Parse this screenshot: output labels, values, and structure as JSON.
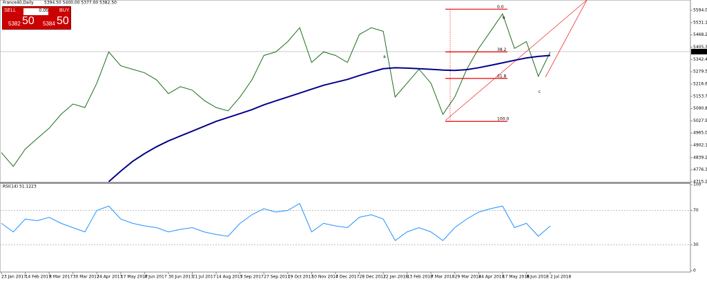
{
  "header": {
    "symbol": "France40,Daily",
    "ohlc": "5394.50 5400.00 5377.00 5382.50"
  },
  "trade_panel": {
    "sell": "SELL",
    "buy": "BUY",
    "lot": "0.05",
    "sell_price": "5382",
    "sell_pips": "50",
    "buy_price": "5384",
    "buy_pips": "50"
  },
  "chart_data": [
    {
      "type": "line",
      "categories": [
        "23 Jan 2017",
        null,
        "14 Feb 2017",
        null,
        "8 Mar 2017",
        null,
        "30 Mar 2017",
        null,
        "24 Apr 2017",
        null,
        "17 May 2017",
        null,
        "8 Jun 2017",
        null,
        "30 Jun 2017",
        null,
        "21 Jul 2017",
        null,
        "14 Aug 2017",
        null,
        "5 Sep 2017",
        null,
        "27 Sep 2017",
        null,
        "19 Oct 2017",
        null,
        "10 Nov 2017",
        null,
        "4 Dec 2017",
        null,
        "28 Dec 2017",
        null,
        "22 Jan 2018",
        null,
        "13 Feb 2018",
        null,
        "7 Mar 2018",
        null,
        "29 Mar 2018",
        null,
        "24 Apr 2018",
        null,
        "17 May 2018",
        null,
        "8 Jun 2018",
        null,
        "2 Jul 2018"
      ],
      "series": [
        {
          "color": "#1a6b1a",
          "values": [
            4865,
            4794,
            4883,
            4937,
            4990,
            5061,
            5114,
            5096,
            5221,
            5381,
            5310,
            5292,
            5274,
            5238,
            5167,
            5203,
            5185,
            5132,
            5096,
            5079,
            5150,
            5238,
            5363,
            5381,
            5434,
            5505,
            5327,
            5381,
            5363,
            5327,
            5470,
            5505,
            5487,
            5150,
            5221,
            5292,
            5221,
            5061,
            5150,
            5292,
            5399,
            5487,
            5576,
            5399,
            5434,
            5256,
            5381
          ]
        },
        {
          "color": "#00008b",
          "values": [
            null,
            null,
            null,
            null,
            null,
            null,
            null,
            null,
            null,
            4716,
            4770,
            4820,
            4860,
            4895,
            4925,
            4950,
            4975,
            5000,
            5025,
            5045,
            5065,
            5085,
            5110,
            5130,
            5150,
            5170,
            5190,
            5210,
            5225,
            5240,
            5260,
            5278,
            5295,
            5300,
            5298,
            5295,
            5292,
            5288,
            5286,
            5290,
            5300,
            5312,
            5325,
            5338,
            5350,
            5358,
            5363
          ]
        }
      ],
      "ylim": [
        4715.25,
        5647
      ],
      "yticks": [
        {
          "value": 5594,
          "label": "5594.00"
        },
        {
          "value": 5531.1,
          "label": "5531.10"
        },
        {
          "value": 5468.2,
          "label": "5468.20"
        },
        {
          "value": 5405.3,
          "label": "5405.30"
        },
        {
          "value": 5342.4,
          "label": "5342.40"
        },
        {
          "value": 5279.5,
          "label": "5279.50"
        },
        {
          "value": 5216.6,
          "label": "5216.60"
        },
        {
          "value": 5153.7,
          "label": "5153.70"
        },
        {
          "value": 5090.8,
          "label": "5090.80"
        },
        {
          "value": 5027.9,
          "label": "5027.90"
        },
        {
          "value": 4965,
          "label": "4965.00"
        },
        {
          "value": 4902.1,
          "label": "4902.10"
        },
        {
          "value": 4839.2,
          "label": "4839.20"
        },
        {
          "value": 4776.3,
          "label": "4776.30"
        },
        {
          "value": 4715.25,
          "label": "4715.25"
        }
      ],
      "current_price": {
        "value": 5382.5,
        "label": "5382.50"
      },
      "fib_levels": [
        {
          "value": 5600,
          "label": "0.0"
        },
        {
          "value": 5381,
          "label": "38.2"
        },
        {
          "value": 5245,
          "label": "61.8"
        },
        {
          "value": 5025,
          "label": "100.0"
        }
      ],
      "annotations": [
        {
          "text": "a",
          "x": 32,
          "y": 5355
        },
        {
          "text": "b",
          "x": 42,
          "y": 5555
        },
        {
          "text": "c",
          "x": 45,
          "y": 5175
        }
      ]
    },
    {
      "type": "line",
      "title": "RSI(14) 51.1223",
      "series": [
        {
          "color": "#1e90ff",
          "values": [
            55,
            45,
            60,
            58,
            62,
            55,
            50,
            45,
            70,
            75,
            60,
            55,
            52,
            50,
            45,
            48,
            50,
            45,
            42,
            40,
            55,
            65,
            72,
            68,
            70,
            78,
            45,
            55,
            52,
            50,
            62,
            65,
            60,
            35,
            45,
            50,
            45,
            35,
            50,
            60,
            68,
            72,
            75,
            50,
            55,
            40,
            52
          ]
        }
      ],
      "ylim": [
        0,
        100
      ],
      "yticks": [
        100,
        70,
        30,
        0
      ],
      "levels": [
        70,
        30
      ]
    }
  ]
}
